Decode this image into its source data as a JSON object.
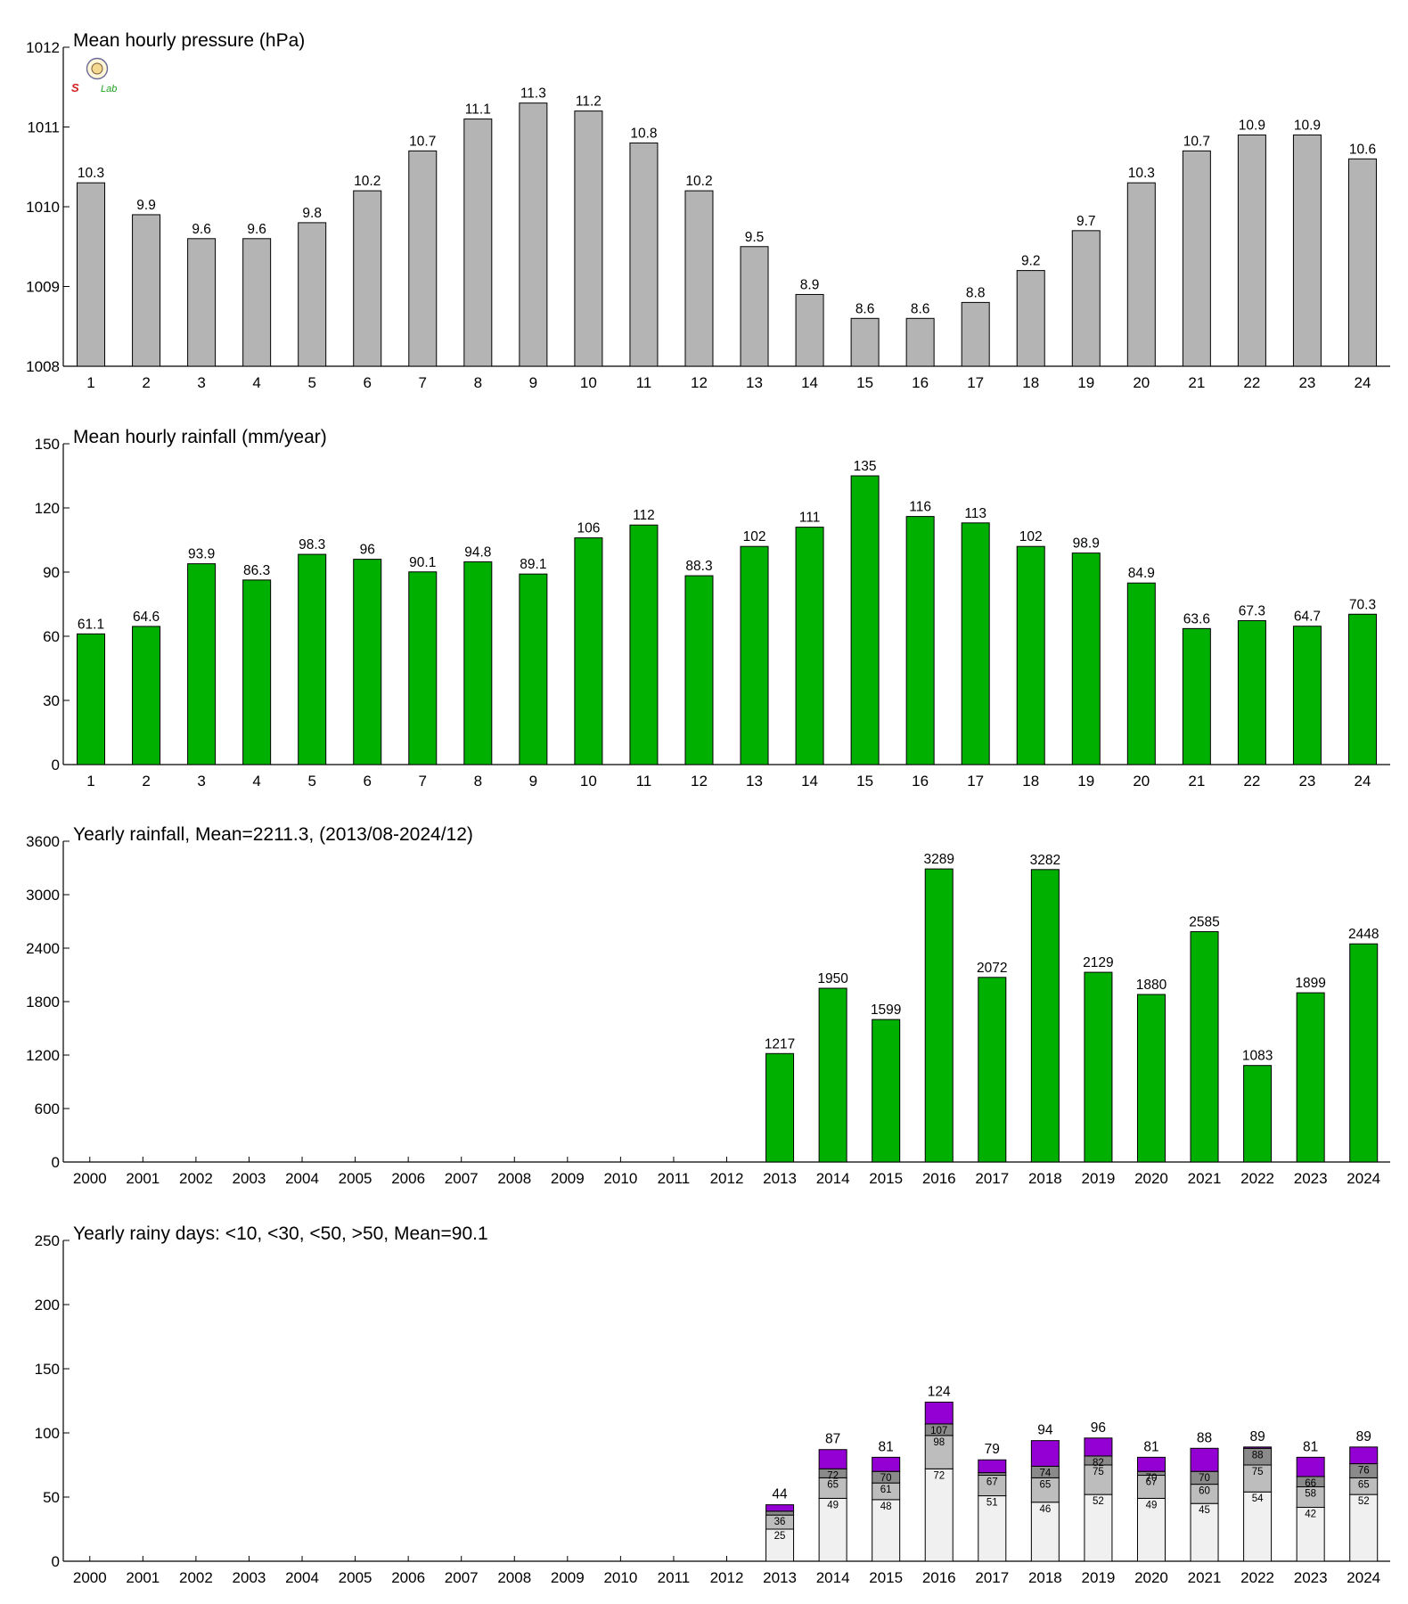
{
  "colors": {
    "gray_bar": "#b4b4b4",
    "green_bar": "#00b000",
    "seg_lt10": "#f0f0f0",
    "seg_lt30": "#bdbdbd",
    "seg_lt50": "#8a8a8a",
    "seg_gt50": "#9400d3"
  },
  "logo": {
    "text_left": "S",
    "text_right": "Lab"
  },
  "chart_data": [
    {
      "type": "bar",
      "title": "Mean hourly pressure (hPa)",
      "categories": [
        "1",
        "2",
        "3",
        "4",
        "5",
        "6",
        "7",
        "8",
        "9",
        "10",
        "11",
        "12",
        "13",
        "14",
        "15",
        "16",
        "17",
        "18",
        "19",
        "20",
        "21",
        "22",
        "23",
        "24"
      ],
      "values": [
        1010.3,
        1009.9,
        1009.6,
        1009.6,
        1009.8,
        1010.2,
        1010.7,
        1011.1,
        1011.3,
        1011.2,
        1010.8,
        1010.2,
        1009.5,
        1008.9,
        1008.6,
        1008.6,
        1008.8,
        1009.2,
        1009.7,
        1010.3,
        1010.7,
        1010.9,
        1010.9,
        1010.6
      ],
      "labels": [
        "10.3",
        "9.9",
        "9.6",
        "9.6",
        "9.8",
        "10.2",
        "10.7",
        "11.1",
        "11.3",
        "11.2",
        "10.8",
        "10.2",
        "9.5",
        "8.9",
        "8.6",
        "8.6",
        "8.8",
        "9.2",
        "9.7",
        "10.3",
        "10.7",
        "10.9",
        "10.9",
        "10.6"
      ],
      "ylim": [
        1008,
        1012
      ],
      "yticks": [
        "1008",
        "1009",
        "1010",
        "1011",
        "1012"
      ],
      "color": "#b4b4b4"
    },
    {
      "type": "bar",
      "title": "Mean hourly rainfall (mm/year)",
      "categories": [
        "1",
        "2",
        "3",
        "4",
        "5",
        "6",
        "7",
        "8",
        "9",
        "10",
        "11",
        "12",
        "13",
        "14",
        "15",
        "16",
        "17",
        "18",
        "19",
        "20",
        "21",
        "22",
        "23",
        "24"
      ],
      "values": [
        61.1,
        64.6,
        93.9,
        86.3,
        98.3,
        96,
        90.1,
        94.8,
        89.1,
        106,
        112,
        88.3,
        102,
        111,
        135,
        116,
        113,
        102,
        98.9,
        84.9,
        63.6,
        67.3,
        64.7,
        70.3
      ],
      "labels": [
        "61.1",
        "64.6",
        "93.9",
        "86.3",
        "98.3",
        "96",
        "90.1",
        "94.8",
        "89.1",
        "106",
        "112",
        "88.3",
        "102",
        "111",
        "135",
        "116",
        "113",
        "102",
        "98.9",
        "84.9",
        "63.6",
        "67.3",
        "64.7",
        "70.3"
      ],
      "ylim": [
        0,
        150
      ],
      "yticks": [
        "0",
        "30",
        "60",
        "90",
        "120",
        "150"
      ],
      "color": "#00b000"
    },
    {
      "type": "bar",
      "title": "Yearly rainfall, Mean=2211.3, (2013/08-2024/12)",
      "categories": [
        "2000",
        "2001",
        "2002",
        "2003",
        "2004",
        "2005",
        "2006",
        "2007",
        "2008",
        "2009",
        "2010",
        "2011",
        "2012",
        "2013",
        "2014",
        "2015",
        "2016",
        "2017",
        "2018",
        "2019",
        "2020",
        "2021",
        "2022",
        "2023",
        "2024"
      ],
      "values": [
        null,
        null,
        null,
        null,
        null,
        null,
        null,
        null,
        null,
        null,
        null,
        null,
        null,
        1217,
        1950,
        1599,
        3289,
        2072,
        3282,
        2129,
        1880,
        2585,
        1083,
        1899,
        2448
      ],
      "labels": [
        "",
        "",
        "",
        "",
        "",
        "",
        "",
        "",
        "",
        "",
        "",
        "",
        "",
        "1217",
        "1950",
        "1599",
        "3289",
        "2072",
        "3282",
        "2129",
        "1880",
        "2585",
        "1083",
        "1899",
        "2448"
      ],
      "ylim": [
        0,
        3600
      ],
      "yticks": [
        "0",
        "600",
        "1200",
        "1800",
        "2400",
        "3000",
        "3600"
      ],
      "color": "#00b000"
    },
    {
      "type": "bar",
      "stacked": true,
      "title": "Yearly rainy days: <10, <30, <50, >50, Mean=90.1",
      "categories": [
        "2000",
        "2001",
        "2002",
        "2003",
        "2004",
        "2005",
        "2006",
        "2007",
        "2008",
        "2009",
        "2010",
        "2011",
        "2012",
        "2013",
        "2014",
        "2015",
        "2016",
        "2017",
        "2018",
        "2019",
        "2020",
        "2021",
        "2022",
        "2023",
        "2024"
      ],
      "ylim": [
        0,
        250
      ],
      "yticks": [
        "0",
        "50",
        "100",
        "150",
        "200",
        "250"
      ],
      "cumulative": [
        null,
        null,
        null,
        null,
        null,
        null,
        null,
        null,
        null,
        null,
        null,
        null,
        null,
        [
          25,
          36,
          39,
          44
        ],
        [
          49,
          65,
          72,
          87
        ],
        [
          48,
          61,
          70,
          81
        ],
        [
          72,
          98,
          107,
          124
        ],
        [
          51,
          67,
          69,
          79
        ],
        [
          46,
          65,
          74,
          94
        ],
        [
          52,
          75,
          82,
          96
        ],
        [
          49,
          67,
          70,
          81
        ],
        [
          45,
          60,
          70,
          88
        ],
        [
          54,
          75,
          88,
          89
        ],
        [
          42,
          58,
          66,
          81
        ],
        [
          52,
          65,
          76,
          89
        ]
      ],
      "segment_labels": [
        null,
        null,
        null,
        null,
        null,
        null,
        null,
        null,
        null,
        null,
        null,
        null,
        null,
        [
          "25",
          "36",
          "",
          ""
        ],
        [
          "49",
          "65",
          "72",
          ""
        ],
        [
          "48",
          "61",
          "70",
          ""
        ],
        [
          "72",
          "98",
          "107",
          ""
        ],
        [
          "51",
          "67",
          "",
          ""
        ],
        [
          "46",
          "65",
          "74",
          ""
        ],
        [
          "52",
          "75",
          "82",
          ""
        ],
        [
          "49",
          "67",
          "70",
          ""
        ],
        [
          "45",
          "60",
          "70",
          ""
        ],
        [
          "54",
          "75",
          "88",
          ""
        ],
        [
          "42",
          "58",
          "66",
          ""
        ],
        [
          "52",
          "65",
          "76",
          ""
        ]
      ],
      "totals": [
        "",
        "",
        "",
        "",
        "",
        "",
        "",
        "",
        "",
        "",
        "",
        "",
        "",
        "44",
        "87",
        "81",
        "124",
        "79",
        "94",
        "96",
        "81",
        "88",
        "89",
        "81",
        "89"
      ],
      "series_colors": [
        "#f0f0f0",
        "#bdbdbd",
        "#8a8a8a",
        "#9400d3"
      ]
    }
  ]
}
